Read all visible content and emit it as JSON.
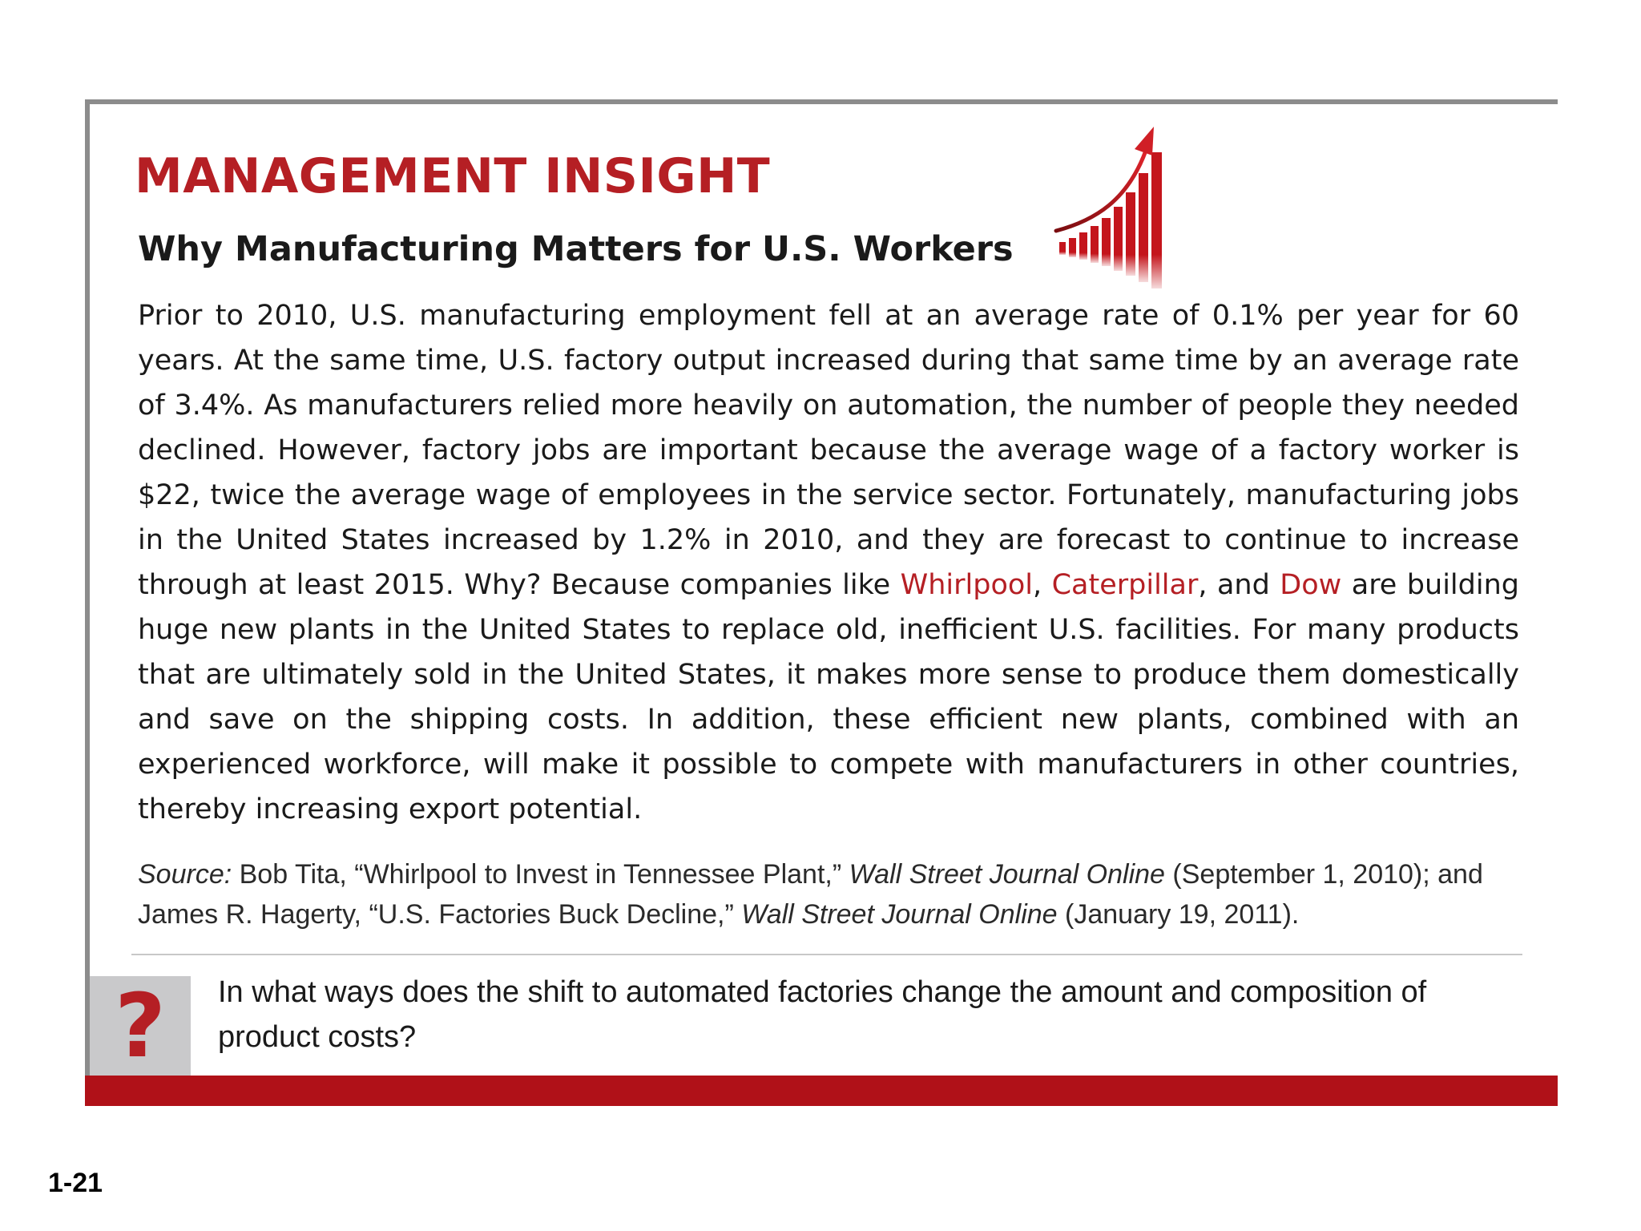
{
  "box": {
    "heading": "MANAGEMENT INSIGHT",
    "subtitle": "Why Manufacturing Matters for U.S. Workers",
    "icon": "rising-bar-chart-icon",
    "body": {
      "part1": "Prior to 2010, U.S. manufacturing employment fell at an average rate of 0.1% per year for 60 years. At the same time, U.S. factory output increased during that same time by an average rate of 3.4%. As manufacturers relied more heavily on automation, the number of people they needed declined. However, factory jobs are important because the average wage of a factory worker is $22, twice the average wage of employees in the service sector. Fortunately, manu­facturing jobs in the United States increased by 1.2% in 2010, and they are forecast to con­tinue to increase through at least 2015. Why? Because companies like ",
      "company1": "Whirlpool",
      "sep1": ", ",
      "company2": "Caterpillar",
      "sep2": ", and ",
      "company3": "Dow",
      "part2": " are building huge new plants in the United States to replace old, inefficient U.S. facilities. For many products that are ultimately sold in the United States, it makes more sense to pro­duce them domestically and save on the shipping costs. In addition, these efficient new plants, combined with an experienced workforce, will make it possible to compete with manufacturers in other countries, thereby increasing export potential."
    },
    "source": {
      "label": "Source:",
      "text1": " Bob Tita, “Whirlpool to Invest in Tennessee Plant,” ",
      "pub1": "Wall Street Journal Online",
      "text2": " (September 1, 2010); and James R. Hagerty, “U.S. Factories Buck Decline,” ",
      "pub2": "Wall Street Journal Online",
      "text3": " (January 19, 2011)."
    },
    "question": {
      "mark": "?",
      "text": "In what ways does the shift to automated factories change the amount and composition of product costs?"
    }
  },
  "colors": {
    "accent_red": "#b51f24",
    "bar_red": "#b01118",
    "frame_gray": "#8c8c8c",
    "question_block_gray": "#c9c9cb"
  },
  "page_number": "1-21"
}
